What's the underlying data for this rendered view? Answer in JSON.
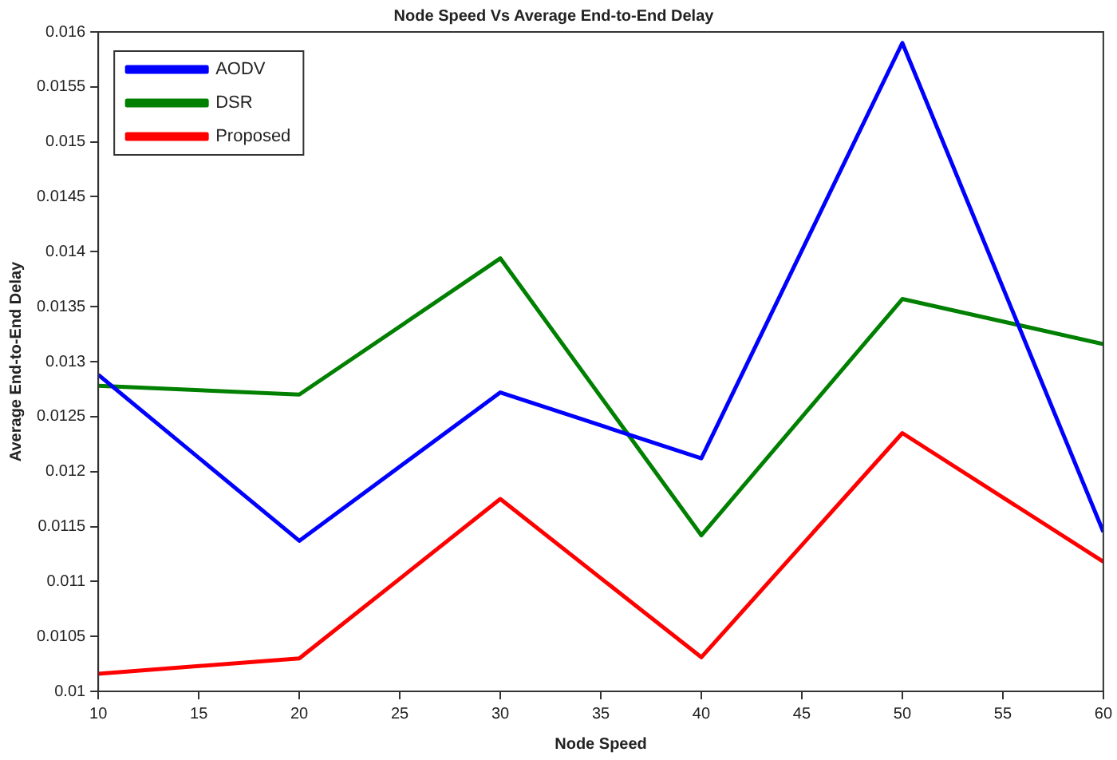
{
  "chart_data": {
    "type": "line",
    "title": "Node Speed Vs Average End-to-End Delay",
    "xlabel": "Node Speed",
    "ylabel": "Average End-to-End Delay",
    "x": [
      10,
      20,
      30,
      40,
      50,
      60
    ],
    "series": [
      {
        "name": "AODV",
        "color": "#0000ff",
        "values": [
          0.01288,
          0.01137,
          0.01272,
          0.01212,
          0.0159,
          0.01145
        ]
      },
      {
        "name": "DSR",
        "color": "#008000",
        "values": [
          0.01278,
          0.0127,
          0.01394,
          0.01142,
          0.01357,
          0.01316
        ]
      },
      {
        "name": "Proposed",
        "color": "#ff0000",
        "values": [
          0.01016,
          0.0103,
          0.01175,
          0.01031,
          0.01235,
          0.01118
        ]
      }
    ],
    "xlim": [
      10,
      60
    ],
    "xticks": [
      10,
      15,
      20,
      25,
      30,
      35,
      40,
      45,
      50,
      55,
      60
    ],
    "ylim": [
      0.01,
      0.016
    ],
    "yticks": [
      0.01,
      0.0105,
      0.011,
      0.0115,
      0.012,
      0.0125,
      0.013,
      0.0135,
      0.014,
      0.0145,
      0.015,
      0.0155,
      0.016
    ],
    "grid": false,
    "legend": "top left",
    "marker": "none",
    "line_style": "solid"
  }
}
